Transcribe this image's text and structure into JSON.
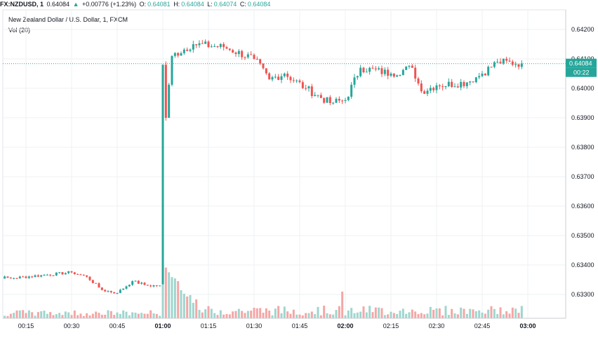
{
  "header": {
    "symbol": "FX:NZDUSD, 1",
    "last": "0.64084",
    "arrow": "▲",
    "change": "+0.00776 (+1.23%)",
    "o_label": "O:",
    "o_value": "0.64081",
    "h_label": "H:",
    "h_value": "0.64084",
    "l_label": "L:",
    "l_value": "0.64074",
    "c_label": "C:",
    "c_value": "0.64084"
  },
  "legend": {
    "title": "New Zealand Dollar / U.S. Dollar, 1, FXCM",
    "volume": "Vol (20)"
  },
  "price_axis": {
    "ticks": [
      "0.64200",
      "0.64100",
      "0.64000",
      "0.63900",
      "0.63800",
      "0.63700",
      "0.63600",
      "0.63500",
      "0.63400",
      "0.63300"
    ],
    "last_price_badge": "0.64084",
    "countdown_badge": "00:22"
  },
  "time_axis": {
    "ticks": [
      "00:15",
      "00:30",
      "00:45",
      "01:00",
      "01:15",
      "01:30",
      "01:45",
      "02:00",
      "02:15",
      "02:30",
      "02:45",
      "03:00"
    ],
    "bold": [
      "01:00",
      "02:00",
      "03:00"
    ]
  },
  "colors": {
    "up": "#26a69a",
    "down": "#ef5350",
    "vol_up": "#9fd6ce",
    "vol_down": "#f5a6a5",
    "grid": "#eef0f3"
  },
  "chart_data": {
    "type": "candlestick",
    "title": "New Zealand Dollar / U.S. Dollar, 1, FXCM",
    "interval": "1 minute",
    "ylim": [
      0.6322,
      0.6424
    ],
    "anchor_prices": [
      {
        "time": "00:00",
        "close": 0.63365
      },
      {
        "time": "00:10",
        "close": 0.63355
      },
      {
        "time": "00:20",
        "close": 0.63365
      },
      {
        "time": "00:30",
        "close": 0.63375
      },
      {
        "time": "00:35",
        "close": 0.6336
      },
      {
        "time": "00:40",
        "close": 0.63315
      },
      {
        "time": "00:45",
        "close": 0.63305
      },
      {
        "time": "00:50",
        "close": 0.63345
      },
      {
        "time": "00:55",
        "close": 0.6333
      },
      {
        "time": "00:59",
        "close": 0.6333
      },
      {
        "time": "01:00",
        "close": 0.6408
      },
      {
        "time": "01:01",
        "close": 0.639
      },
      {
        "time": "01:03",
        "close": 0.6411
      },
      {
        "time": "01:10",
        "close": 0.6415
      },
      {
        "time": "01:20",
        "close": 0.6414
      },
      {
        "time": "01:30",
        "close": 0.641
      },
      {
        "time": "01:35",
        "close": 0.6403
      },
      {
        "time": "01:40",
        "close": 0.6405
      },
      {
        "time": "01:47",
        "close": 0.64
      },
      {
        "time": "01:55",
        "close": 0.6395
      },
      {
        "time": "02:00",
        "close": 0.6396
      },
      {
        "time": "02:05",
        "close": 0.6407
      },
      {
        "time": "02:15",
        "close": 0.6405
      },
      {
        "time": "02:22",
        "close": 0.6407
      },
      {
        "time": "02:25",
        "close": 0.6399
      },
      {
        "time": "02:30",
        "close": 0.6401
      },
      {
        "time": "02:40",
        "close": 0.6402
      },
      {
        "time": "02:45",
        "close": 0.6405
      },
      {
        "time": "02:50",
        "close": 0.6409
      },
      {
        "time": "02:58",
        "close": 0.64084
      }
    ],
    "last_price": 0.64084
  }
}
